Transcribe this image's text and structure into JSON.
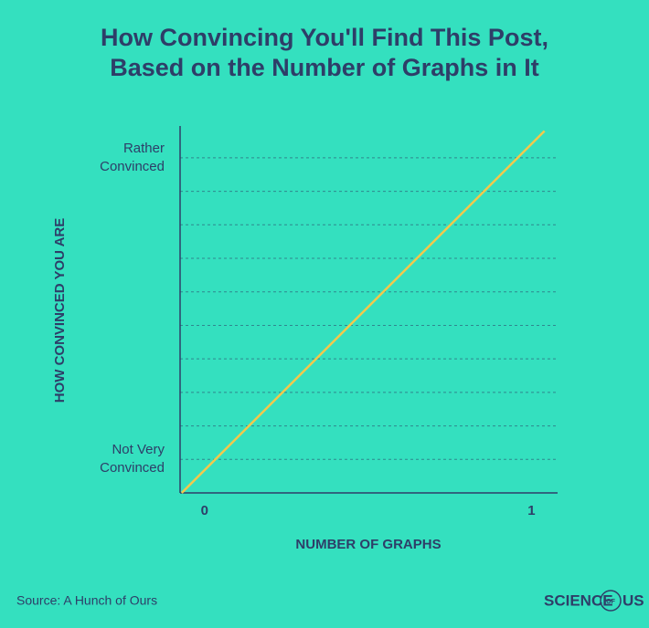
{
  "chart_data": {
    "type": "line",
    "title": [
      "How Convincing You'll Find This Post,",
      "Based on the Number of Graphs in It"
    ],
    "x_label": "NUMBER OF GRAPHS",
    "y_label": "HOW CONVINCED YOU ARE",
    "x": [
      -0.07,
      1.04
    ],
    "series": [
      {
        "color": "#f2c94c",
        "values": [
          0,
          10.8
        ]
      }
    ],
    "xlim": [
      -0.075,
      1.08
    ],
    "ylim": [
      0,
      10.95
    ],
    "xticks": [
      0,
      1
    ],
    "yticks": [
      {
        "value": 1,
        "label": "Not Very Convinced"
      },
      {
        "value": 10,
        "label": "Rather Convinced"
      }
    ],
    "grid_lines": [
      1,
      2,
      3,
      4,
      5,
      6,
      7,
      8,
      9,
      10
    ],
    "source": "Source: A Hunch of Ours",
    "logo": {
      "left": "SCIENCE",
      "middle": "OF",
      "right": "US"
    }
  }
}
